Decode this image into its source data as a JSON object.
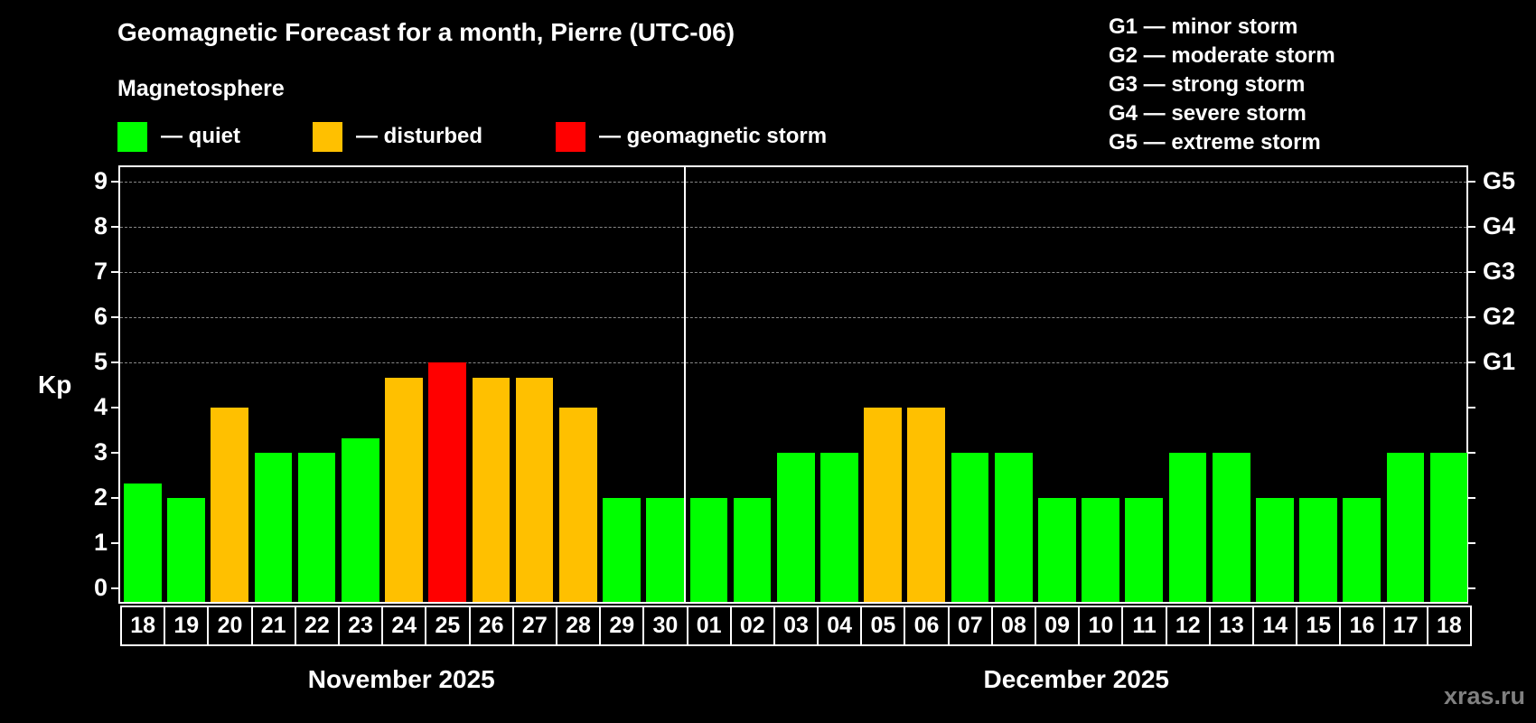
{
  "header": {
    "title": "Geomagnetic Forecast for a month, Pierre (UTC-06)",
    "subtitle": "Magnetosphere"
  },
  "legend": [
    {
      "label": "— quiet",
      "color": "#00ff00"
    },
    {
      "label": "— disturbed",
      "color": "#ffc000"
    },
    {
      "label": "— geomagnetic storm",
      "color": "#ff0000"
    }
  ],
  "g_legend": [
    "G1 — minor storm",
    "G2 — moderate storm",
    "G3 — strong storm",
    "G4 — severe storm",
    "G5 — extreme storm"
  ],
  "watermark": "xras.ru",
  "chart_data": {
    "type": "bar",
    "title": "Geomagnetic Forecast for a month, Pierre (UTC-06)",
    "subtitle": "Magnetosphere",
    "xlabel": "",
    "ylabel": "Kp",
    "ylim": [
      0,
      9
    ],
    "yticks": [
      0,
      1,
      2,
      3,
      4,
      5,
      6,
      7,
      8,
      9
    ],
    "grid": "dashed horizontal at Kp 5-9",
    "right_axis_labels": [
      {
        "kp": 5,
        "label": "G1"
      },
      {
        "kp": 6,
        "label": "G2"
      },
      {
        "kp": 7,
        "label": "G3"
      },
      {
        "kp": 8,
        "label": "G4"
      },
      {
        "kp": 9,
        "label": "G5"
      }
    ],
    "months": [
      {
        "label": "November 2025",
        "start_index": 0,
        "count": 13
      },
      {
        "label": "December 2025",
        "start_index": 13,
        "count": 18
      }
    ],
    "categories": [
      "18",
      "19",
      "20",
      "21",
      "22",
      "23",
      "24",
      "25",
      "26",
      "27",
      "28",
      "29",
      "30",
      "01",
      "02",
      "03",
      "04",
      "05",
      "06",
      "07",
      "08",
      "09",
      "10",
      "11",
      "12",
      "13",
      "14",
      "15",
      "16",
      "17",
      "18"
    ],
    "values": [
      2.33,
      2,
      4,
      3,
      3,
      3.33,
      4.67,
      5,
      4.67,
      4.67,
      4,
      2,
      2,
      2,
      2,
      3,
      3,
      4,
      4,
      3,
      3,
      2,
      2,
      2,
      3,
      3,
      2,
      2,
      2,
      3,
      3
    ],
    "status": [
      "quiet",
      "quiet",
      "disturbed",
      "quiet",
      "quiet",
      "quiet",
      "disturbed",
      "storm",
      "disturbed",
      "disturbed",
      "disturbed",
      "quiet",
      "quiet",
      "quiet",
      "quiet",
      "quiet",
      "quiet",
      "disturbed",
      "disturbed",
      "quiet",
      "quiet",
      "quiet",
      "quiet",
      "quiet",
      "quiet",
      "quiet",
      "quiet",
      "quiet",
      "quiet",
      "quiet",
      "quiet"
    ],
    "status_colors": {
      "quiet": "#00ff00",
      "disturbed": "#ffc000",
      "storm": "#ff0000"
    },
    "legend": [
      "quiet",
      "disturbed",
      "geomagnetic storm"
    ]
  }
}
